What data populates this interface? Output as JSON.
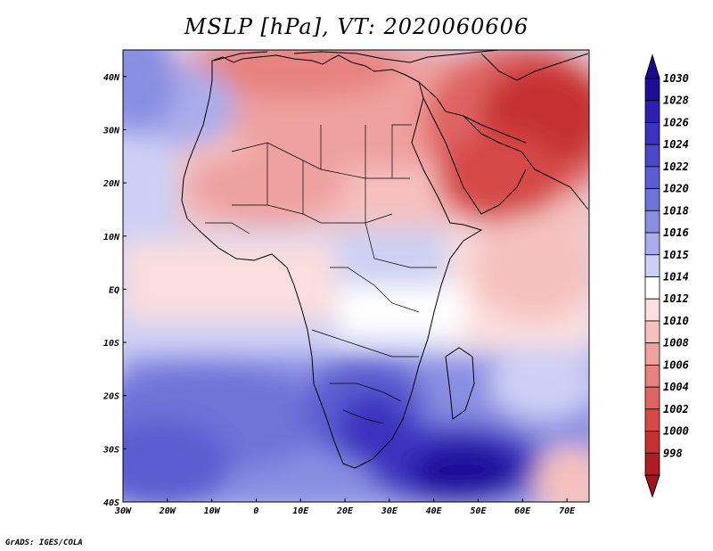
{
  "title": "MSLP [hPa], VT: 2020060606",
  "credit": "GrADS: IGES/COLA",
  "map": {
    "lon_range": [
      -30,
      75
    ],
    "lat_range": [
      -40,
      45
    ],
    "lon_ticks": [
      {
        "value": -30,
        "label": "30W"
      },
      {
        "value": -20,
        "label": "20W"
      },
      {
        "value": -10,
        "label": "10W"
      },
      {
        "value": 0,
        "label": "0"
      },
      {
        "value": 10,
        "label": "10E"
      },
      {
        "value": 20,
        "label": "20E"
      },
      {
        "value": 30,
        "label": "30E"
      },
      {
        "value": 40,
        "label": "40E"
      },
      {
        "value": 50,
        "label": "50E"
      },
      {
        "value": 60,
        "label": "60E"
      },
      {
        "value": 70,
        "label": "70E"
      }
    ],
    "lat_ticks": [
      {
        "value": 40,
        "label": "40N"
      },
      {
        "value": 30,
        "label": "30N"
      },
      {
        "value": 20,
        "label": "20N"
      },
      {
        "value": 10,
        "label": "10N"
      },
      {
        "value": 0,
        "label": "EQ"
      },
      {
        "value": -10,
        "label": "10S"
      },
      {
        "value": -20,
        "label": "20S"
      },
      {
        "value": -30,
        "label": "30S"
      },
      {
        "value": -40,
        "label": "40S"
      }
    ]
  },
  "colorbar": {
    "levels": [
      {
        "label": "1030",
        "color": "#1f0d9a"
      },
      {
        "label": "1028",
        "color": "#2d1fb0"
      },
      {
        "label": "1026",
        "color": "#3a33bf"
      },
      {
        "label": "1024",
        "color": "#4a48c8"
      },
      {
        "label": "1022",
        "color": "#5c5dd0"
      },
      {
        "label": "1020",
        "color": "#7073d8"
      },
      {
        "label": "1018",
        "color": "#8a8ee2"
      },
      {
        "label": "1016",
        "color": "#a9adec"
      },
      {
        "label": "1015",
        "color": "#cdd0f5"
      },
      {
        "label": "1014",
        "color": "#ffffff"
      },
      {
        "label": "1012",
        "color": "#fbdedd"
      },
      {
        "label": "1010",
        "color": "#f5c1bf"
      },
      {
        "label": "1008",
        "color": "#eea19f"
      },
      {
        "label": "1006",
        "color": "#e7827f"
      },
      {
        "label": "1004",
        "color": "#df6462"
      },
      {
        "label": "1002",
        "color": "#d54947"
      },
      {
        "label": "1000",
        "color": "#c63032"
      },
      {
        "label": "998",
        "color": "#b01c22"
      }
    ],
    "top_cap_color": "#1a0a8c",
    "bottom_cap_color": "#a0141c"
  },
  "field_regions": [
    {
      "name": "mediterranean-low",
      "lon": 15,
      "lat": 40,
      "value": 1010
    },
    {
      "name": "middle-east-low",
      "lon": 58,
      "lat": 28,
      "value": 1000
    },
    {
      "name": "arabian-low",
      "lon": 50,
      "lat": 20,
      "value": 1004
    },
    {
      "name": "sahara-low",
      "lon": 10,
      "lat": 22,
      "value": 1010
    },
    {
      "name": "azores-high",
      "lon": -25,
      "lat": 35,
      "value": 1022
    },
    {
      "name": "south-atlantic-high",
      "lon": -15,
      "lat": -30,
      "value": 1024
    },
    {
      "name": "southern-africa-high",
      "lon": 25,
      "lat": -25,
      "value": 1026
    },
    {
      "name": "mascarene-high",
      "lon": 47,
      "lat": -35,
      "value": 1030
    },
    {
      "name": "indian-ocean-trough",
      "lon": 65,
      "lat": 0,
      "value": 1012
    }
  ]
}
